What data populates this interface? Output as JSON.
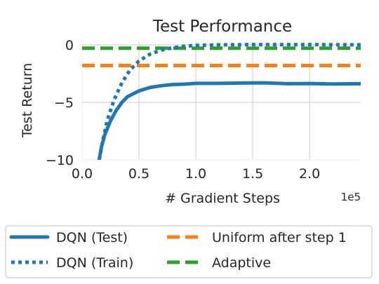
{
  "chart_data": {
    "type": "line",
    "title": "Test Performance",
    "xlabel": "# Gradient Steps",
    "ylabel": "Test Return",
    "x_exponent_label": "1e5",
    "xlim": [
      0,
      2.45
    ],
    "ylim": [
      -10,
      0.3
    ],
    "x_ticks": [
      0.0,
      0.5,
      1.0,
      1.5,
      2.0
    ],
    "x_tick_labels": [
      "0.0",
      "0.5",
      "1.0",
      "1.5",
      "2.0"
    ],
    "y_ticks": [
      -10,
      -5,
      0
    ],
    "y_tick_labels": [
      "−10",
      "−5",
      "0"
    ],
    "grid": true,
    "legend_position": "below",
    "series": [
      {
        "name": "DQN (Test)",
        "style": "solid",
        "color": "#1f77b4",
        "points": [
          [
            0.15,
            -10.0
          ],
          [
            0.17,
            -8.9
          ],
          [
            0.2,
            -7.8
          ],
          [
            0.25,
            -6.6
          ],
          [
            0.3,
            -5.7
          ],
          [
            0.35,
            -5.0
          ],
          [
            0.4,
            -4.5
          ],
          [
            0.5,
            -4.0
          ],
          [
            0.6,
            -3.7
          ],
          [
            0.7,
            -3.55
          ],
          [
            0.8,
            -3.45
          ],
          [
            0.9,
            -3.42
          ],
          [
            1.0,
            -3.35
          ],
          [
            1.2,
            -3.35
          ],
          [
            1.4,
            -3.32
          ],
          [
            1.6,
            -3.3
          ],
          [
            1.8,
            -3.38
          ],
          [
            2.0,
            -3.36
          ],
          [
            2.2,
            -3.4
          ],
          [
            2.45,
            -3.38
          ]
        ]
      },
      {
        "name": "DQN (Train)",
        "style": "dotted",
        "color": "#1f77b4",
        "points": [
          [
            0.15,
            -10.0
          ],
          [
            0.18,
            -8.4
          ],
          [
            0.22,
            -6.6
          ],
          [
            0.28,
            -4.8
          ],
          [
            0.35,
            -3.3
          ],
          [
            0.42,
            -2.2
          ],
          [
            0.5,
            -1.4
          ],
          [
            0.6,
            -0.8
          ],
          [
            0.7,
            -0.45
          ],
          [
            0.8,
            -0.25
          ],
          [
            0.9,
            -0.12
          ],
          [
            1.0,
            -0.05
          ],
          [
            1.2,
            0.0
          ],
          [
            1.5,
            0.02
          ],
          [
            2.0,
            0.02
          ],
          [
            2.45,
            0.0
          ]
        ]
      },
      {
        "name": "Uniform after step 1",
        "style": "dashed",
        "color": "#ff7f0e",
        "points": [
          [
            0,
            -1.8
          ],
          [
            2.45,
            -1.8
          ]
        ]
      },
      {
        "name": "Adaptive",
        "style": "dashed",
        "color": "#2ca02c",
        "points": [
          [
            0,
            -0.3
          ],
          [
            2.45,
            -0.3
          ]
        ]
      }
    ]
  }
}
